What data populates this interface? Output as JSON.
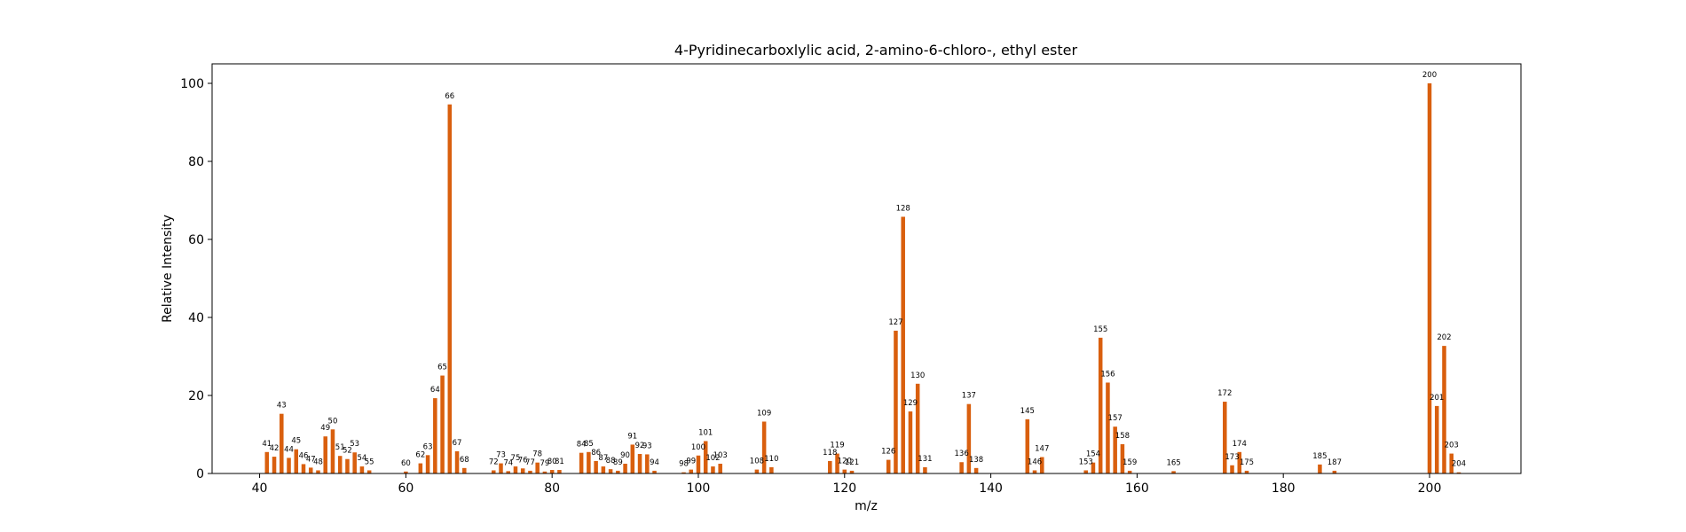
{
  "chart_data": {
    "type": "bar",
    "title": "4-Pyridinecarboxlylic acid, 2-amino-6-chloro-, ethyl ester",
    "xlabel": "m/z",
    "ylabel": "Relative Intensity",
    "xlim": [
      33.5,
      212.5
    ],
    "ylim": [
      0,
      105
    ],
    "xticks": [
      40,
      60,
      80,
      100,
      120,
      140,
      160,
      180,
      200
    ],
    "yticks": [
      0,
      20,
      40,
      60,
      80,
      100
    ],
    "grid": false,
    "bar_color": "#d95f0e",
    "x": [
      41,
      42,
      43,
      44,
      45,
      46,
      47,
      48,
      49,
      50,
      51,
      52,
      53,
      54,
      55,
      60,
      62,
      63,
      64,
      65,
      66,
      67,
      68,
      72,
      73,
      74,
      75,
      76,
      77,
      78,
      79,
      80,
      81,
      84,
      85,
      86,
      87,
      88,
      89,
      90,
      91,
      92,
      93,
      94,
      98,
      99,
      100,
      101,
      102,
      103,
      108,
      109,
      110,
      118,
      119,
      120,
      121,
      126,
      127,
      128,
      129,
      130,
      131,
      136,
      137,
      138,
      145,
      146,
      147,
      153,
      154,
      155,
      156,
      157,
      158,
      159,
      165,
      172,
      173,
      174,
      175,
      185,
      187,
      200,
      201,
      202,
      203,
      204
    ],
    "values": [
      5.5,
      4.3,
      15.3,
      4.0,
      6.2,
      2.4,
      1.5,
      0.8,
      9.5,
      11.3,
      4.5,
      3.7,
      5.4,
      1.8,
      0.8,
      0.5,
      2.6,
      4.7,
      19.3,
      25.1,
      94.6,
      5.7,
      1.4,
      0.8,
      2.6,
      0.6,
      1.8,
      1.3,
      0.7,
      2.8,
      0.5,
      0.9,
      0.9,
      5.3,
      5.5,
      3.2,
      1.8,
      1.1,
      0.7,
      2.5,
      7.4,
      5.0,
      4.9,
      0.7,
      0.3,
      1.0,
      4.6,
      8.3,
      1.8,
      2.5,
      1.0,
      13.3,
      1.6,
      3.2,
      5.1,
      1.0,
      0.7,
      3.5,
      36.6,
      65.8,
      15.9,
      23.0,
      1.6,
      2.9,
      17.8,
      1.4,
      13.9,
      0.8,
      4.2,
      0.8,
      2.8,
      34.8,
      23.3,
      12.0,
      7.5,
      0.7,
      0.6,
      18.4,
      2.1,
      5.5,
      0.7,
      2.3,
      0.7,
      100.0,
      17.3,
      32.7,
      5.1,
      0.3
    ]
  }
}
